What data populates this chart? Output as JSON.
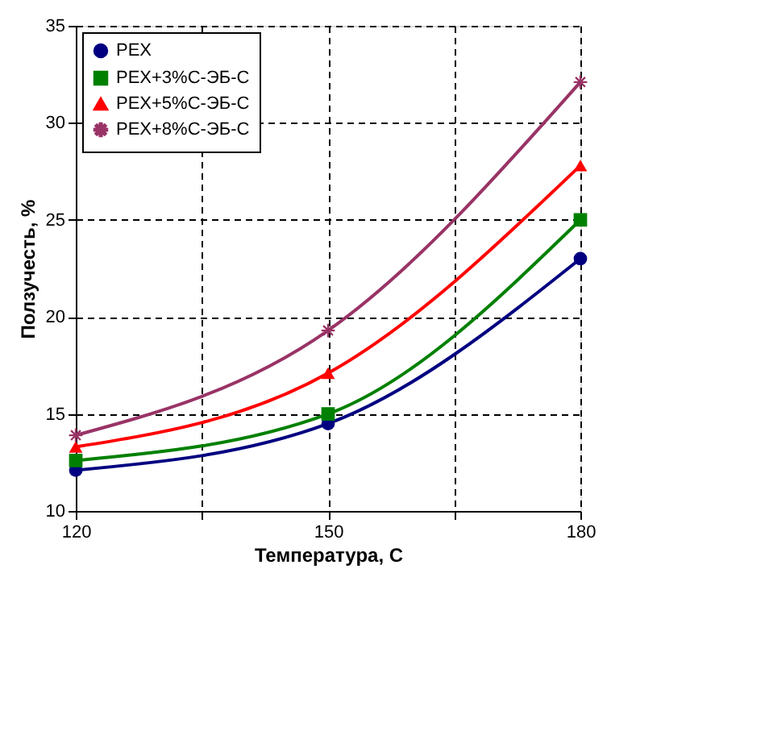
{
  "chart_data": {
    "type": "line",
    "xlabel": "Температура, С",
    "ylabel": "Ползучесть, %",
    "x": [
      120,
      150,
      180
    ],
    "series": [
      {
        "name": "PEX",
        "color": "#000080",
        "marker": "circle",
        "values": [
          12.1,
          14.5,
          23.0
        ]
      },
      {
        "name": "PEX+3%C-ЭБ-C",
        "color": "#008000",
        "marker": "square",
        "values": [
          12.6,
          15.0,
          25.0
        ]
      },
      {
        "name": "PEX+5%C-ЭБ-C",
        "color": "#ff0000",
        "marker": "triangle",
        "values": [
          13.3,
          17.1,
          27.8
        ]
      },
      {
        "name": "PEX+8%C-ЭБ-C",
        "color": "#993366",
        "marker": "star",
        "values": [
          13.9,
          19.3,
          32.1
        ]
      }
    ],
    "xlim": [
      120,
      180
    ],
    "xticks": [
      120,
      {
        "value": 135,
        "label": null
      },
      150,
      {
        "value": 165,
        "label": null
      },
      180
    ],
    "ylim": [
      10,
      35
    ],
    "yticks": [
      10,
      15,
      20,
      25,
      30,
      35
    ],
    "grid": true,
    "legend": "top left",
    "line_style": "solid"
  }
}
